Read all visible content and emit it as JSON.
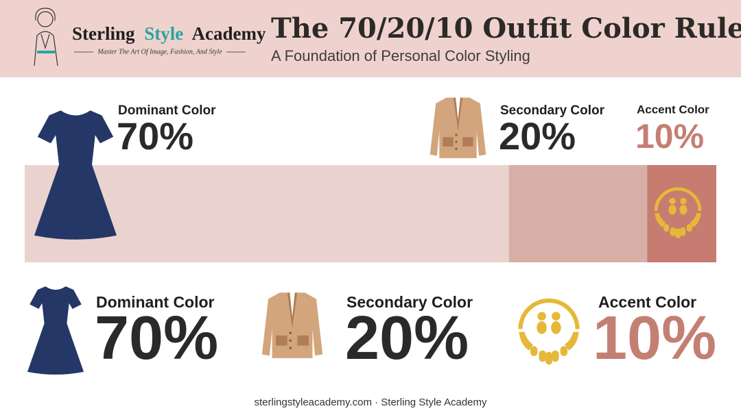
{
  "header": {
    "brand_start": "Sterling",
    "brand_highlight": "Style",
    "brand_end": "Academy",
    "tagline": "Master The Art Of Image, Fashion, And Style"
  },
  "chart_data": {
    "type": "bar",
    "title": "The 70/20/10 Outfit Color Rule",
    "subtitle": "A Foundation of Personal Color Styling",
    "categories": [
      "Dominant Color",
      "Secondary Color",
      "Accent Color"
    ],
    "values": [
      70,
      20,
      10
    ],
    "value_labels": [
      "70%",
      "20%",
      "10%"
    ],
    "colors": [
      "#ead3cf",
      "#d8afa6",
      "#c67c70"
    ],
    "value_label_colors": [
      "#2b2a28",
      "#2b2a28",
      "#c47f73"
    ]
  },
  "footer": "sterlingstyleacademy.com · Sterling Style Academy"
}
